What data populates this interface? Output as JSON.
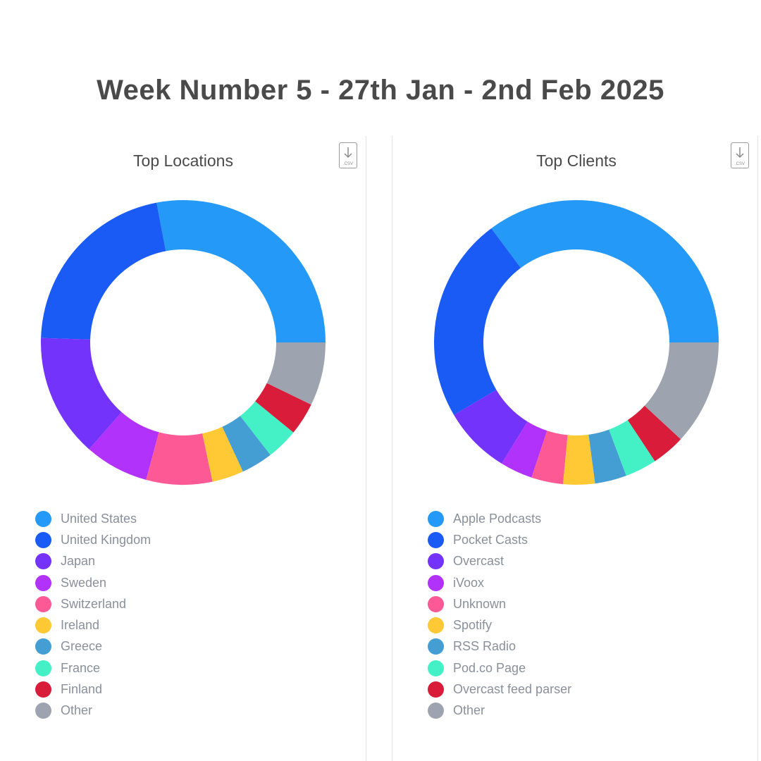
{
  "page": {
    "title": "Week Number 5 - 27th Jan - 2nd Feb 2025"
  },
  "icons": {
    "csv_download": "download-csv-icon",
    "csv_label": ".CSV"
  },
  "chart_data": [
    {
      "type": "pie",
      "variant": "donut",
      "title": "Top Locations",
      "legend_position": "bottom-left",
      "categories": [
        "United States",
        "United Kingdom",
        "Japan",
        "Sweden",
        "Switzerland",
        "Ireland",
        "Greece",
        "France",
        "Finland",
        "Other"
      ],
      "values": [
        28.0,
        21.5,
        14.0,
        7.3,
        7.5,
        3.6,
        3.6,
        3.6,
        3.7,
        7.2
      ],
      "colors": [
        "#2599f8",
        "#1a5af5",
        "#7433fb",
        "#b133fb",
        "#fd5995",
        "#fec935",
        "#459ed3",
        "#44f1c7",
        "#d81c3a",
        "#9ea4af"
      ]
    },
    {
      "type": "pie",
      "variant": "donut",
      "title": "Top Clients",
      "legend_position": "bottom-left",
      "categories": [
        "Apple Podcasts",
        "Pocket Casts",
        "Overcast",
        "iVoox",
        "Unknown",
        "Spotify",
        "RSS Radio",
        "Pod.co Page",
        "Overcast feed parser",
        "Other"
      ],
      "values": [
        35.2,
        23.3,
        7.7,
        3.7,
        3.6,
        3.6,
        3.6,
        3.6,
        3.8,
        11.9
      ],
      "colors": [
        "#2599f8",
        "#1a5af5",
        "#7433fb",
        "#b133fb",
        "#fd5995",
        "#fec935",
        "#459ed3",
        "#44f1c7",
        "#d81c3a",
        "#9ea4af"
      ]
    }
  ]
}
